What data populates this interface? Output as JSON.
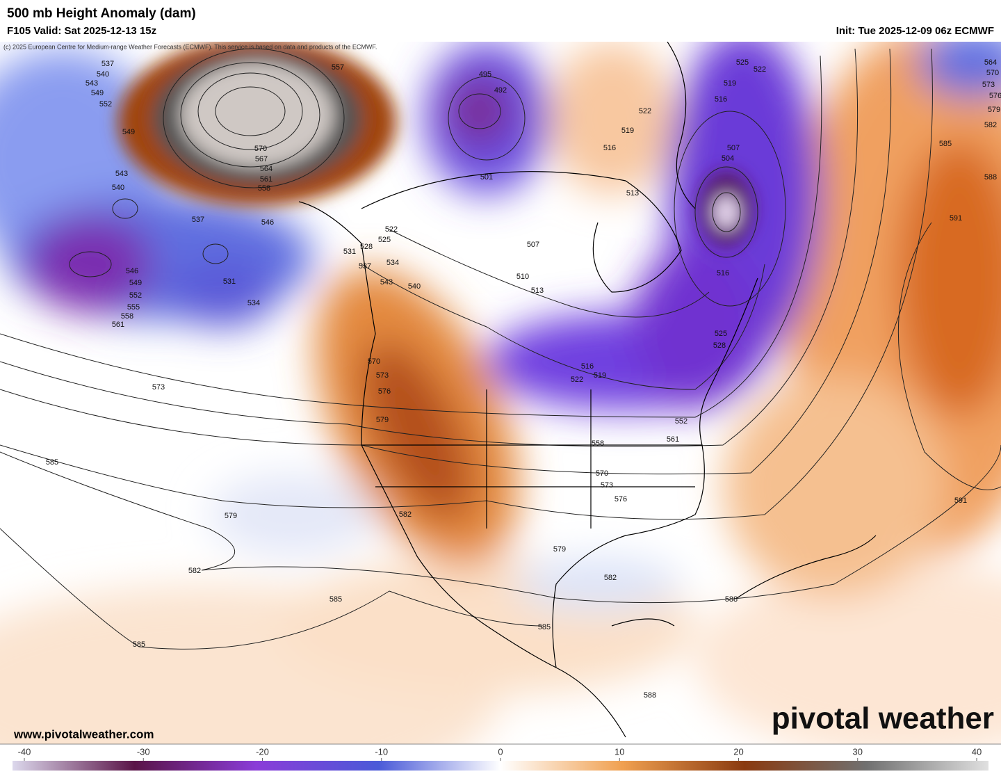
{
  "header": {
    "title": "500 mb Height Anomaly (dam)",
    "valid": "F105 Valid: Sat 2025-12-13 15z",
    "init": "Init: Tue 2025-12-09 06z ECMWF"
  },
  "map": {
    "copyright": "(c) 2025 European Centre for Medium-range Weather Forecasts (ECMWF). This service is based on data and products of the ECMWF.",
    "contour_labels": [
      537,
      540,
      543,
      549,
      552,
      549,
      543,
      540,
      537,
      546,
      549,
      552,
      555,
      558,
      561,
      531,
      534,
      573,
      585,
      579,
      582,
      585,
      585,
      557,
      570,
      567,
      564,
      561,
      558,
      546,
      522,
      525,
      528,
      531,
      534,
      537,
      540,
      543,
      570,
      573,
      576,
      579,
      582,
      495,
      492,
      501,
      507,
      510,
      513,
      516,
      519,
      522,
      522,
      519,
      516,
      513,
      525,
      522,
      519,
      516,
      507,
      504,
      558,
      570,
      573,
      576,
      579,
      582,
      585,
      588,
      588,
      591,
      591,
      588,
      585,
      582,
      579,
      576,
      573,
      570,
      564,
      516,
      525,
      528,
      552,
      561
    ],
    "website": "www.pivotalweather.com",
    "logo": "pivotal weather"
  },
  "colorbar": {
    "ticks": [
      -40,
      -30,
      -20,
      -10,
      0,
      10,
      20,
      30,
      40
    ],
    "colors": [
      "#dcd8ec",
      "#5a1448",
      "#8a3cd8",
      "#4a5ad8",
      "#ffffff",
      "#f0a050",
      "#8a3a10",
      "#707070",
      "#e0e0e0"
    ]
  }
}
